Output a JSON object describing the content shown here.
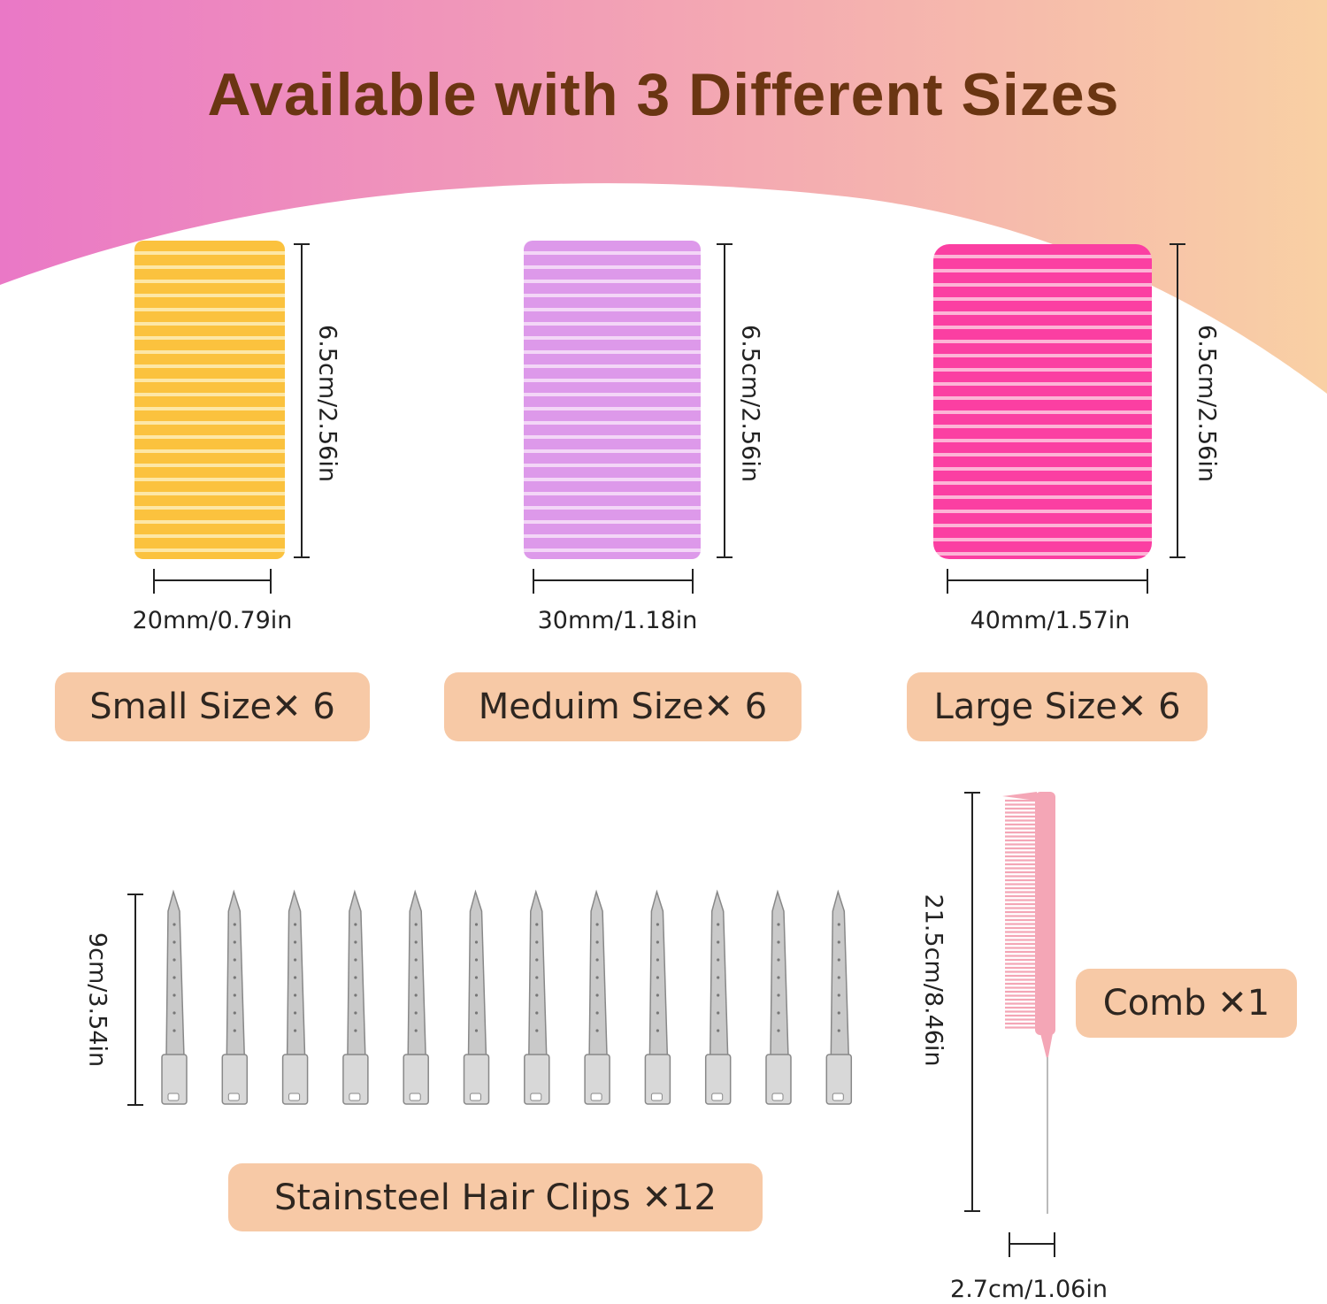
{
  "title": "Available with 3 Different Sizes",
  "colors": {
    "gradient_left": "#e97bc7",
    "gradient_right": "#f8cfa5",
    "title": "#6a3512",
    "pill": "#f7c9a6",
    "small_roller": "#fbc23e",
    "medium_roller": "#dd99ea",
    "large_roller": "#fb3fa2",
    "comb": "#f4a6b6"
  },
  "rollers": [
    {
      "height_label": "6.5cm/2.56in",
      "width_label": "20mm/0.79in",
      "pill": "Small Size✕ 6"
    },
    {
      "height_label": "6.5cm/2.56in",
      "width_label": "30mm/1.18in",
      "pill": "Meduim Size✕ 6"
    },
    {
      "height_label": "6.5cm/2.56in",
      "width_label": "40mm/1.57in",
      "pill": "Large Size✕ 6"
    }
  ],
  "clips": {
    "height_label": "9cm/3.54in",
    "pill": "Stainsteel Hair Clips ✕12",
    "count": 12
  },
  "comb": {
    "height_label": "21.5cm/8.46in",
    "width_label": "2.7cm/1.06in",
    "pill": "Comb ✕1"
  }
}
